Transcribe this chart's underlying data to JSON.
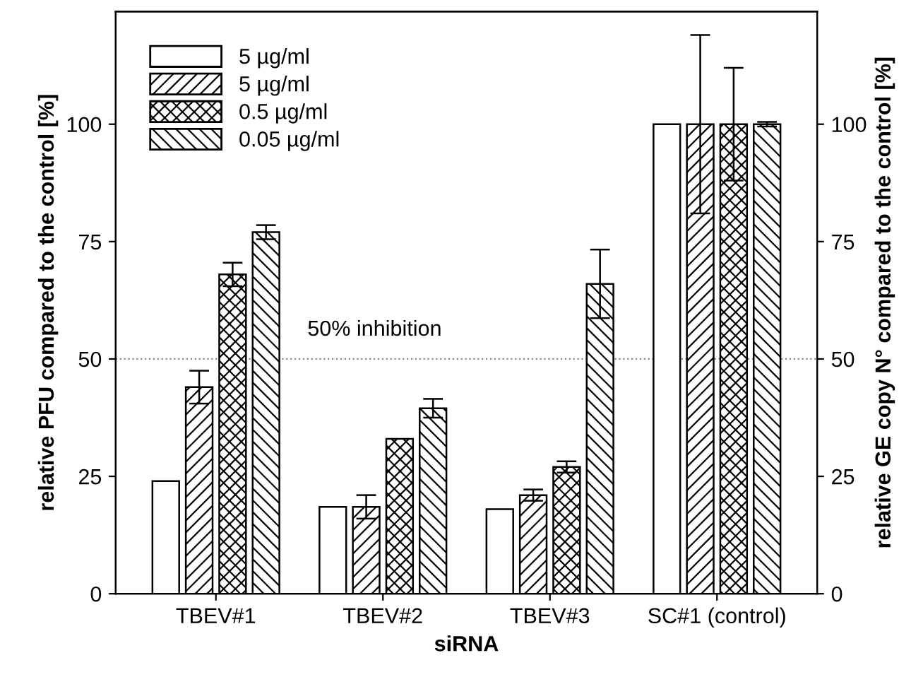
{
  "chart_data": {
    "type": "bar",
    "xlabel": "siRNA",
    "ylabel": "relative PFU compared to the control [%]",
    "y2label": "relative GE copy N° compared to the control [%]",
    "categories": [
      "TBEV#1",
      "TBEV#2",
      "TBEV#3",
      "SC#1 (control)"
    ],
    "series": [
      {
        "name": "5 µg/ml",
        "color": "#ffffff",
        "values": [
          24,
          18.5,
          18,
          100
        ]
      },
      {
        "name": "5 µg/ml",
        "color": "#000000",
        "values": [
          44,
          18.5,
          21,
          100
        ],
        "errors": [
          3.5,
          2.5,
          1.2,
          19
        ]
      },
      {
        "name": "0.5 µg/ml",
        "color": "#000000",
        "values": [
          68,
          33,
          27,
          100
        ],
        "errors": [
          2.5,
          null,
          1.2,
          12
        ]
      },
      {
        "name": "0.05 µg/ml",
        "color": "#000000",
        "values": [
          77,
          39.5,
          66,
          100
        ],
        "errors": [
          1.5,
          2,
          7.3,
          0.5
        ]
      }
    ],
    "ylim": [
      0,
      124
    ],
    "yticks": [
      0,
      25,
      50,
      75,
      100
    ],
    "y2lim": [
      0,
      124
    ],
    "y2ticks": [
      0,
      25,
      50,
      75,
      100
    ],
    "ref_lines": [
      {
        "axis": "y",
        "value": 50,
        "label": "50% inhibition",
        "color": "#888888",
        "line_style": "dotted"
      }
    ],
    "legend": "top left",
    "grid": false
  }
}
